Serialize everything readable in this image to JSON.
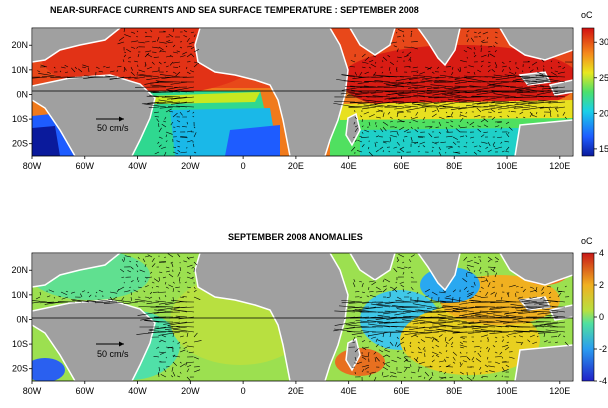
{
  "chart_data": [
    {
      "type": "heatmap",
      "title": "NEAR-SURFACE CURRENTS AND SEA SURFACE TEMPERATURE : SEPTEMBER 2008",
      "x_ticks": [
        "80W",
        "60W",
        "40W",
        "20W",
        "0",
        "20E",
        "40E",
        "60E",
        "80E",
        "100E",
        "120E"
      ],
      "x_values": [
        -80,
        -60,
        -40,
        -20,
        0,
        20,
        40,
        60,
        80,
        100,
        120
      ],
      "xlim": [
        -80,
        125
      ],
      "y_ticks": [
        "20N",
        "10N",
        "0N",
        "10S",
        "20S"
      ],
      "y_values": [
        20,
        10,
        0,
        -10,
        -20
      ],
      "ylim": [
        -25,
        27
      ],
      "colorbar": {
        "unit": "oC",
        "ticks": [
          15,
          20,
          25,
          30
        ],
        "range": [
          14,
          32
        ]
      },
      "reference_arrow_label": "50 cm/s",
      "grid": false
    },
    {
      "type": "heatmap",
      "title": "SEPTEMBER 2008 ANOMALIES",
      "x_ticks": [
        "80W",
        "60W",
        "40W",
        "20W",
        "0",
        "20E",
        "40E",
        "60E",
        "80E",
        "100E",
        "120E"
      ],
      "x_values": [
        -80,
        -60,
        -40,
        -20,
        0,
        20,
        40,
        60,
        80,
        100,
        120
      ],
      "xlim": [
        -80,
        125
      ],
      "y_ticks": [
        "20N",
        "10N",
        "0N",
        "10S",
        "20S"
      ],
      "y_values": [
        20,
        10,
        0,
        -10,
        -20
      ],
      "ylim": [
        -25,
        27
      ],
      "colorbar": {
        "unit": "oC",
        "ticks": [
          4,
          2,
          0,
          -2,
          -4
        ],
        "range": [
          -4,
          4
        ]
      },
      "reference_arrow_label": "50 cm/s",
      "grid": false
    }
  ]
}
